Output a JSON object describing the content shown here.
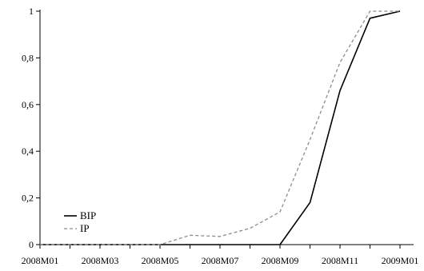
{
  "chart_data": {
    "type": "line",
    "x": [
      "2008M01",
      "2008M02",
      "2008M03",
      "2008M04",
      "2008M05",
      "2008M06",
      "2008M07",
      "2008M08",
      "2008M09",
      "2008M10",
      "2008M11",
      "2008M12",
      "2009M01"
    ],
    "x_tick_labels": [
      "2008M01",
      "2008M03",
      "2008M05",
      "2008M07",
      "2008M09",
      "2008M11",
      "2009M01"
    ],
    "y_tick_labels": [
      "0",
      "0,2",
      "0,4",
      "0,6",
      "0,8",
      "1"
    ],
    "ylim": [
      0,
      1
    ],
    "grid": false,
    "legend_position": "bottom-left",
    "series": [
      {
        "name": "BIP",
        "color": "#000000",
        "dash": "solid",
        "values": [
          0,
          0,
          0,
          0,
          0,
          0,
          0,
          0,
          0,
          0.18,
          0.66,
          0.97,
          1.0
        ]
      },
      {
        "name": "IP",
        "color": "#8c8c8c",
        "dash": "dashed",
        "values": [
          0,
          0,
          0,
          0,
          0,
          0.04,
          0.035,
          0.07,
          0.14,
          0.45,
          0.78,
          1.0,
          1.0
        ]
      }
    ]
  }
}
